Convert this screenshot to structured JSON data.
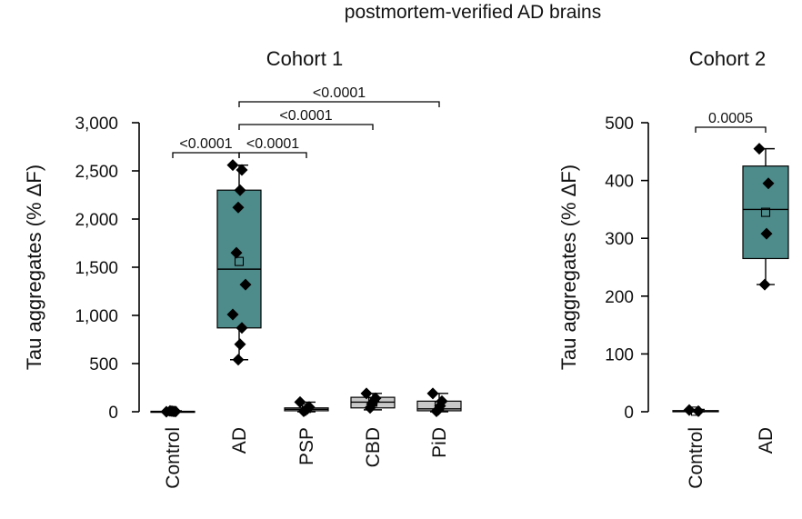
{
  "figure": {
    "heading": "postmortem-verified AD brains"
  },
  "colors": {
    "ad_box": "#4e8c8c",
    "other_box": "#c9c9c9",
    "point": "#000000",
    "axis": "#000000"
  },
  "chart_data": [
    {
      "type": "box",
      "title": "Cohort 1",
      "ylabel": "Tau aggregates (% ΔF)",
      "ylim": [
        0,
        3000
      ],
      "yticks": [
        0,
        500,
        1000,
        1500,
        2000,
        2500,
        3000
      ],
      "ytick_labels": [
        "0",
        "500",
        "1,000",
        "1,500",
        "2,000",
        "2,500",
        "3,000"
      ],
      "categories": [
        "Control",
        "AD",
        "PSP",
        "CBD",
        "PiD"
      ],
      "groups": [
        {
          "name": "Control",
          "min": 0,
          "q1": 0,
          "median": 2,
          "q3": 5,
          "max": 10,
          "mean": 3,
          "points": [
            0,
            2,
            4,
            6,
            8
          ]
        },
        {
          "name": "AD",
          "min": 540,
          "q1": 870,
          "median": 1480,
          "q3": 2300,
          "max": 2560,
          "mean": 1560,
          "points": [
            2560,
            2510,
            2300,
            2120,
            1650,
            1320,
            1010,
            870,
            700,
            540
          ]
        },
        {
          "name": "PSP",
          "min": 0,
          "q1": 10,
          "median": 25,
          "q3": 40,
          "max": 100,
          "mean": 35,
          "points": [
            100,
            50,
            30,
            15,
            5
          ]
        },
        {
          "name": "CBD",
          "min": 20,
          "q1": 40,
          "median": 100,
          "q3": 150,
          "max": 190,
          "mean": 100,
          "points": [
            190,
            140,
            110,
            80,
            40
          ]
        },
        {
          "name": "PiD",
          "min": 0,
          "q1": 10,
          "median": 30,
          "q3": 110,
          "max": 190,
          "mean": 60,
          "points": [
            190,
            110,
            60,
            20,
            5
          ]
        }
      ],
      "comparisons": [
        {
          "from": "Control",
          "to": "AD",
          "label": "<0.0001"
        },
        {
          "from": "AD",
          "to": "PSP",
          "label": "<0.0001"
        },
        {
          "from": "AD",
          "to": "CBD",
          "label": "<0.0001"
        },
        {
          "from": "AD",
          "to": "PiD",
          "label": "<0.0001"
        }
      ]
    },
    {
      "type": "box",
      "title": "Cohort 2",
      "ylabel": "Tau aggregates (% ΔF)",
      "ylim": [
        0,
        500
      ],
      "yticks": [
        0,
        100,
        200,
        300,
        400,
        500
      ],
      "ytick_labels": [
        "0",
        "100",
        "200",
        "300",
        "400",
        "500"
      ],
      "categories": [
        "Control",
        "AD"
      ],
      "groups": [
        {
          "name": "Control",
          "min": 0,
          "q1": 0,
          "median": 1,
          "q3": 2,
          "max": 4,
          "mean": 1,
          "points": [
            3,
            1
          ]
        },
        {
          "name": "AD",
          "min": 220,
          "q1": 265,
          "median": 350,
          "q3": 425,
          "max": 455,
          "mean": 345,
          "points": [
            455,
            395,
            308,
            220
          ]
        }
      ],
      "comparisons": [
        {
          "from": "Control",
          "to": "AD",
          "label": "0.0005"
        }
      ]
    }
  ]
}
